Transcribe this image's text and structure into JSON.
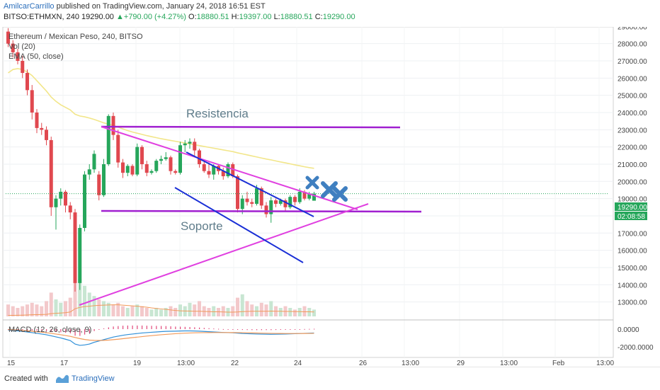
{
  "header": {
    "author": "AmilcarCarrillo",
    "published": "published on TradingView.com, January 24, 2018 16:51 EST",
    "symbol": "BITSO:ETHMXN, 240",
    "last": "19290.00",
    "change": "+790.00 (+4.27%)",
    "o_label": "O:",
    "o": "18880.51",
    "h_label": "H:",
    "h": "19397.00",
    "l_label": "L:",
    "l": "18880.51",
    "c_label": "C:",
    "c": "19290.00"
  },
  "legend": {
    "title": "Ethereum / Mexican Peso, 240, BITSO",
    "vol": "Vol (20)",
    "ema": "EMA (50, close)",
    "macd": "MACD (12, 26, close, 9)"
  },
  "annotations": {
    "resistance": "Resistencia",
    "support": "Soporte"
  },
  "price_tag": {
    "price": "19290.00",
    "countdown": "02:08:58"
  },
  "footer": {
    "created": "Created with",
    "brand": "TradingView"
  },
  "colors": {
    "up": "#26a65b",
    "down": "#e0484f",
    "trend": "#e040e0",
    "level": "#a020d0",
    "channel": "#1a2fd6",
    "ema": "#f2e68a",
    "marker": "#3f7fc0"
  },
  "chart_data": {
    "type": "candlestick",
    "price_axis": {
      "ticks": [
        13000,
        14000,
        15000,
        16000,
        17000,
        18000,
        19000,
        20000,
        21000,
        22000,
        23000,
        24000,
        25000,
        26000,
        27000,
        28000,
        29000
      ]
    },
    "macd_axis": {
      "ticks": [
        "0.0000",
        "-2000.0000"
      ]
    },
    "time_axis": {
      "ticks": [
        "15",
        "17",
        "19",
        "13:00",
        "22",
        "24",
        "26",
        "13:00",
        "29",
        "13:00",
        "Feb",
        "13:00"
      ]
    },
    "candles": [
      [
        28700,
        28900,
        27800,
        28000
      ],
      [
        28000,
        28200,
        27200,
        27500
      ],
      [
        27500,
        27700,
        26800,
        27000
      ],
      [
        27000,
        27300,
        26000,
        26300
      ],
      [
        26300,
        26500,
        25000,
        25300
      ],
      [
        25300,
        25600,
        23600,
        24000
      ],
      [
        24000,
        24200,
        22800,
        23100
      ],
      [
        23100,
        23400,
        22700,
        23000
      ],
      [
        23000,
        23200,
        22100,
        22400
      ],
      [
        22400,
        22600,
        18000,
        18500
      ],
      [
        18500,
        19200,
        17200,
        19000
      ],
      [
        19000,
        19600,
        18600,
        19400
      ],
      [
        19400,
        19500,
        18200,
        18600
      ],
      [
        18600,
        18800,
        17800,
        18200
      ],
      [
        18200,
        18400,
        13600,
        14100
      ],
      [
        14100,
        17500,
        13700,
        17300
      ],
      [
        17300,
        20600,
        17100,
        20400
      ],
      [
        20400,
        21000,
        20100,
        20700
      ],
      [
        20700,
        21800,
        20500,
        21600
      ],
      [
        20400,
        20600,
        18900,
        19200
      ],
      [
        19200,
        21300,
        19100,
        21000
      ],
      [
        21000,
        23900,
        20900,
        23800
      ],
      [
        23800,
        24000,
        22400,
        22700
      ],
      [
        22700,
        23000,
        20800,
        21100
      ],
      [
        21100,
        21300,
        20200,
        20500
      ],
      [
        20500,
        21000,
        20300,
        20900
      ],
      [
        20900,
        21000,
        20300,
        20400
      ],
      [
        20400,
        22200,
        20300,
        22000
      ],
      [
        22000,
        22100,
        20700,
        21000
      ],
      [
        21000,
        21200,
        20300,
        20500
      ],
      [
        20500,
        20700,
        20400,
        20600
      ],
      [
        20600,
        21300,
        20500,
        21200
      ],
      [
        21200,
        21500,
        21000,
        21300
      ],
      [
        21300,
        21700,
        21200,
        21400
      ],
      [
        21400,
        21500,
        20400,
        20600
      ],
      [
        20600,
        20700,
        20400,
        20500
      ],
      [
        20500,
        22300,
        20400,
        22100
      ],
      [
        22100,
        22400,
        21700,
        22200
      ],
      [
        22200,
        22500,
        21900,
        22300
      ],
      [
        22300,
        22500,
        21500,
        21800
      ],
      [
        21800,
        21900,
        20800,
        21000
      ],
      [
        21000,
        21200,
        20500,
        20600
      ],
      [
        20600,
        21100,
        20200,
        20400
      ],
      [
        20400,
        21000,
        20100,
        20900
      ],
      [
        20900,
        21000,
        20400,
        20600
      ],
      [
        20600,
        20800,
        20100,
        20300
      ],
      [
        20300,
        21100,
        20200,
        21000
      ],
      [
        21000,
        21100,
        20200,
        20300
      ],
      [
        20300,
        20400,
        18200,
        18400
      ],
      [
        18400,
        19200,
        18100,
        19000
      ],
      [
        19000,
        19400,
        18600,
        18800
      ],
      [
        18800,
        19000,
        18500,
        18700
      ],
      [
        18700,
        19800,
        18600,
        19600
      ],
      [
        19600,
        19700,
        18400,
        18600
      ],
      [
        18600,
        18800,
        17900,
        18100
      ],
      [
        18100,
        19100,
        17600,
        18900
      ],
      [
        18900,
        19000,
        18500,
        18700
      ],
      [
        18700,
        19000,
        18600,
        18900
      ],
      [
        18900,
        19000,
        18300,
        18500
      ],
      [
        18500,
        19200,
        18400,
        19100
      ],
      [
        19100,
        19200,
        18600,
        18800
      ],
      [
        18800,
        19600,
        18700,
        19400
      ],
      [
        19400,
        19500,
        18900,
        19000
      ],
      [
        19000,
        19400,
        18900,
        19300
      ],
      [
        18880.51,
        19397,
        18880.51,
        19290
      ]
    ],
    "volume": [
      7,
      6,
      5,
      6,
      7,
      8,
      7,
      6,
      9,
      14,
      10,
      8,
      9,
      11,
      28,
      22,
      18,
      14,
      12,
      10,
      9,
      8,
      7,
      8,
      6,
      5,
      6,
      7,
      6,
      5,
      4,
      5,
      4,
      5,
      6,
      5,
      7,
      6,
      8,
      7,
      9,
      6,
      5,
      6,
      5,
      6,
      5,
      6,
      11,
      13,
      9,
      7,
      6,
      8,
      7,
      9,
      6,
      5,
      6,
      5,
      4,
      5,
      6,
      5,
      4
    ],
    "ema": [
      26300,
      26500,
      26550,
      26500,
      26350,
      26150,
      25850,
      25550,
      25250,
      24900,
      24650,
      24450,
      24300,
      24150,
      23900,
      23800,
      23750,
      23680,
      23600,
      23500,
      23400,
      23330,
      23250,
      23150,
      23050,
      22950,
      22870,
      22800,
      22730,
      22660,
      22600,
      22540,
      22480,
      22430,
      22380,
      22330,
      22280,
      22230,
      22180,
      22130,
      22080,
      22030,
      21980,
      21930,
      21880,
      21830,
      21780,
      21730,
      21660,
      21600,
      21540,
      21480,
      21420,
      21360,
      21300,
      21250,
      21190,
      21130,
      21080,
      21020,
      20960,
      20910,
      20850,
      20800,
      20760
    ],
    "vol_ma": [
      0.6,
      0.62,
      0.7,
      0.75,
      0.85,
      1.0,
      1.05,
      1.1,
      1.2,
      1.6,
      1.8,
      2.0,
      2.2,
      2.6,
      4.5,
      5.3,
      5.8,
      6.0,
      6.3,
      6.5,
      6.6,
      6.7,
      6.8,
      6.8,
      6.6,
      6.4,
      6.2,
      6.0,
      5.7,
      5.4,
      5.0,
      4.7,
      4.4,
      4.1,
      3.8,
      3.5,
      3.3,
      3.2,
      3.1,
      3.0,
      3.0,
      2.9,
      2.8,
      2.7,
      2.7,
      2.6,
      2.5,
      2.5,
      2.6,
      2.8,
      2.9,
      3.0,
      3.0,
      3.0,
      3.0,
      3.1,
      3.0,
      3.0,
      2.9,
      2.9,
      2.8,
      2.8,
      2.7,
      2.7,
      2.6
    ],
    "macd": [
      -100,
      -150,
      -200,
      -250,
      -320,
      -400,
      -480,
      -560,
      -640,
      -760,
      -880,
      -1000,
      -1150,
      -1300,
      -1700,
      -1850,
      -1800,
      -1700,
      -1500,
      -1350,
      -1200,
      -1050,
      -900,
      -800,
      -700,
      -620,
      -560,
      -500,
      -440,
      -400,
      -360,
      -320,
      -280,
      -250,
      -240,
      -230,
      -210,
      -200,
      -200,
      -210,
      -230,
      -260,
      -290,
      -320,
      -350,
      -380,
      -400,
      -420,
      -460,
      -500,
      -520,
      -540,
      -560,
      -570,
      -580,
      -590,
      -580,
      -570,
      -560,
      -540,
      -520,
      -500,
      -480,
      -460,
      -440
    ],
    "signal": [
      -50,
      -80,
      -110,
      -150,
      -190,
      -240,
      -290,
      -350,
      -410,
      -480,
      -560,
      -640,
      -730,
      -820,
      -950,
      -1080,
      -1180,
      -1250,
      -1280,
      -1290,
      -1280,
      -1250,
      -1200,
      -1150,
      -1090,
      -1030,
      -970,
      -910,
      -850,
      -790,
      -740,
      -690,
      -640,
      -600,
      -560,
      -520,
      -490,
      -460,
      -440,
      -420,
      -410,
      -400,
      -395,
      -390,
      -388,
      -388,
      -390,
      -394,
      -400,
      -410,
      -420,
      -432,
      -445,
      -458,
      -470,
      -480,
      -488,
      -494,
      -498,
      -500,
      -500,
      -498,
      -494,
      -488,
      -480
    ]
  }
}
